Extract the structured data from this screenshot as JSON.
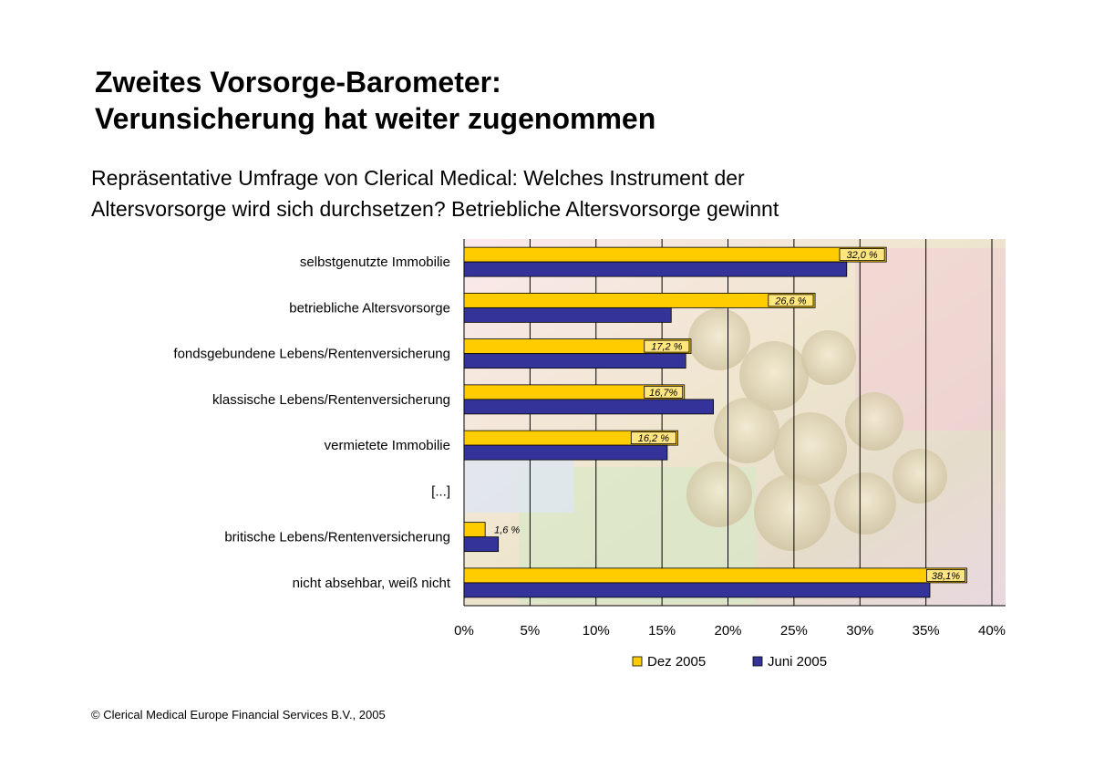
{
  "header": {
    "title_line1": "Zweites Vorsorge-Barometer:",
    "title_line2": "Verunsicherung hat weiter zugenommen",
    "subtitle_line1": "Repräsentative Umfrage von Clerical Medical: Welches Instrument der",
    "subtitle_line2": "Altersvorsorge wird sich durchsetzen? Betriebliche Altersvorsorge gewinnt"
  },
  "footer": {
    "copyright": "© Clerical Medical Europe Financial Services B.V., 2005"
  },
  "colors": {
    "dez": "#ffcc00",
    "juni": "#333399",
    "gridline": "#000000"
  },
  "chart_data": {
    "type": "bar",
    "orientation": "horizontal",
    "categories": [
      "selbstgenutzte Immobilie",
      "betriebliche Altersvorsorge",
      "fondsgebundene Lebens/Rentenversicherung",
      "klassische Lebens/Rentenversicherung",
      "vermietete Immobilie",
      "[...]",
      "britische Lebens/Rentenversicherung",
      "nicht absehbar, weiß nicht"
    ],
    "series": [
      {
        "name": "Dez 2005",
        "values": [
          32.0,
          26.6,
          17.2,
          16.7,
          16.2,
          null,
          1.6,
          38.1
        ],
        "labels": [
          "32,0 %",
          "26,6 %",
          "17,2 %",
          "16,7%",
          "16,2 %",
          "",
          "1,6 %",
          "38,1%"
        ]
      },
      {
        "name": "Juni 2005",
        "values": [
          29.0,
          15.7,
          16.8,
          18.9,
          15.4,
          null,
          2.6,
          35.3
        ],
        "labels": [
          "",
          "",
          "",
          "",
          "",
          "",
          "",
          ""
        ]
      }
    ],
    "xlim": [
      0,
      40
    ],
    "xticks": [
      0,
      5,
      10,
      15,
      20,
      25,
      30,
      35,
      40
    ],
    "xtick_labels": [
      "0%",
      "5%",
      "10%",
      "15%",
      "20%",
      "25%",
      "30%",
      "35%",
      "40%"
    ],
    "grid": true,
    "legend_position": "bottom"
  }
}
